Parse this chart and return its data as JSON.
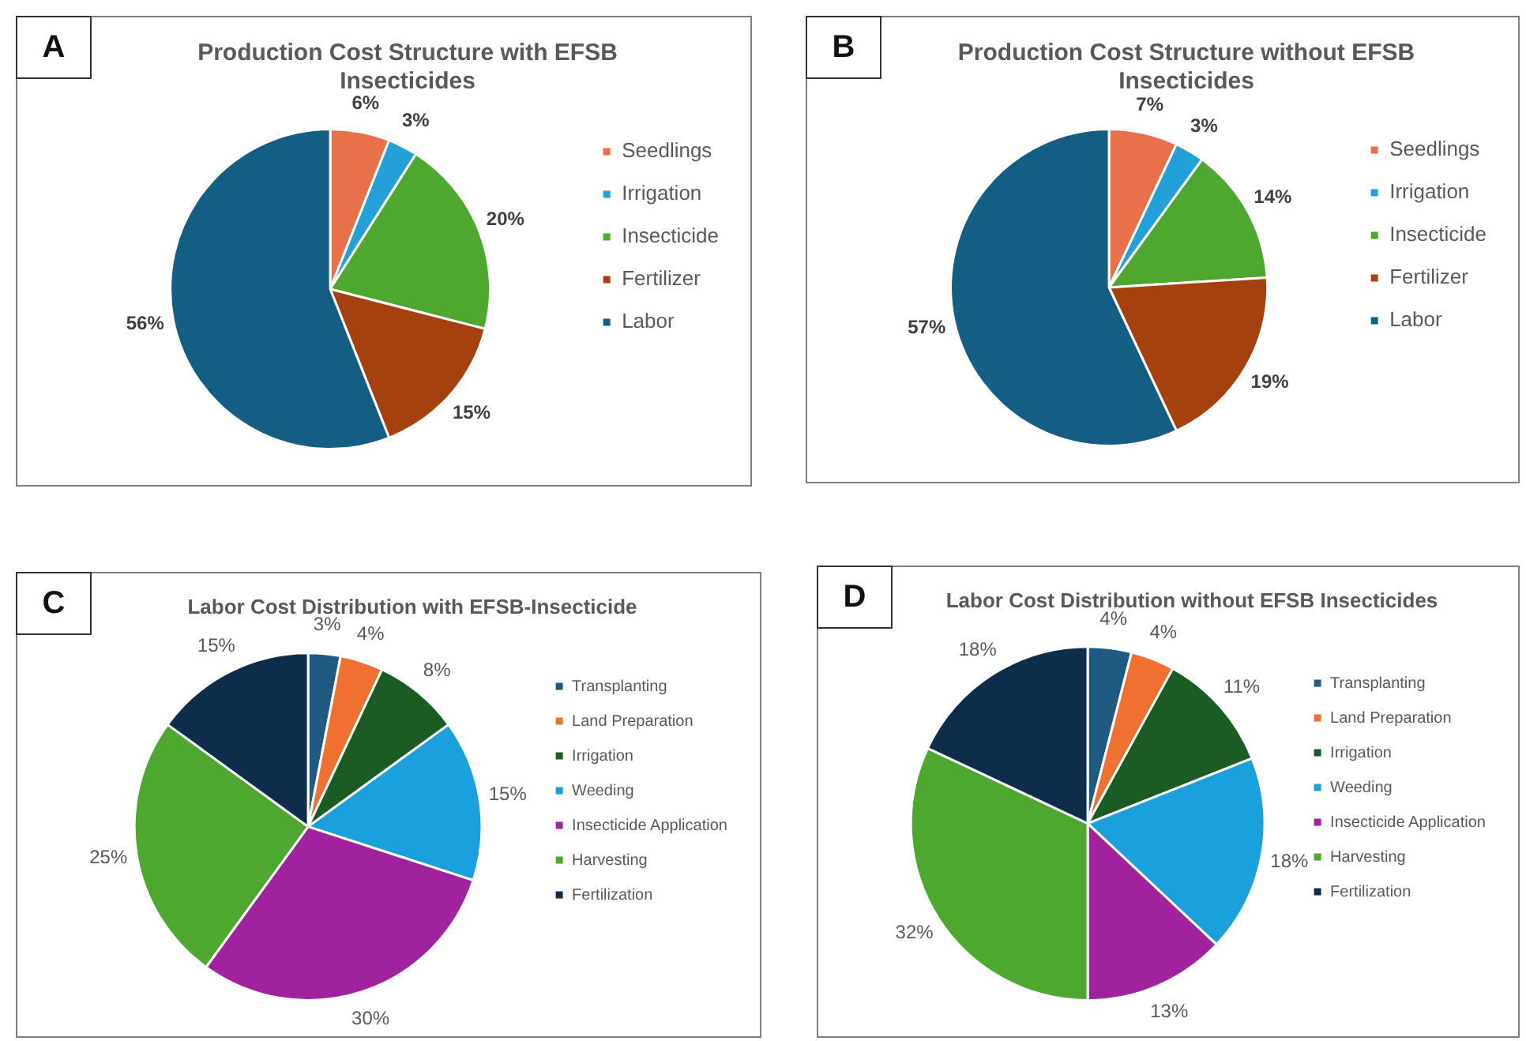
{
  "chart_data": [
    {
      "type": "pie",
      "title": [
        "Production Cost Structure with EFSB",
        "Insecticides"
      ],
      "annotations": [
        "A"
      ],
      "categories": [
        "Seedlings",
        "Irrigation",
        "Insecticide",
        "Fertilizer",
        "Labor"
      ],
      "values": [
        6,
        3,
        20,
        15,
        56
      ],
      "value_labels": [
        "6%",
        "3%",
        "20%",
        "15%",
        "56%"
      ],
      "colors": [
        "#e8704a",
        "#22a0d8",
        "#4ea72e",
        "#a5400f",
        "#155e83"
      ],
      "legend": "right"
    },
    {
      "type": "pie",
      "title": [
        "Production Cost Structure without EFSB",
        "Insecticides"
      ],
      "annotations": [
        "B"
      ],
      "categories": [
        "Seedlings",
        "Irrigation",
        "Insecticide",
        "Fertilizer",
        "Labor"
      ],
      "values": [
        7,
        3,
        14,
        19,
        57
      ],
      "value_labels": [
        "7%",
        "3%",
        "14%",
        "19%",
        "57%"
      ],
      "colors": [
        "#e8704a",
        "#22a0d8",
        "#4ea72e",
        "#a5400f",
        "#155e83"
      ],
      "legend": "right"
    },
    {
      "type": "pie",
      "title": "Labor Cost Distribution with EFSB-Insecticide",
      "annotations": [
        "C"
      ],
      "categories": [
        "Transplanting",
        "Land Preparation",
        "Irrigation",
        "Weeding",
        "Insecticide Application",
        "Harvesting",
        "Fertilization"
      ],
      "values": [
        3,
        4,
        8,
        15,
        30,
        25,
        15
      ],
      "value_labels": [
        "3%",
        "4%",
        "8%",
        "15%",
        "30%",
        "25%",
        "15%"
      ],
      "colors": [
        "#1f5a80",
        "#ef7030",
        "#1a5c24",
        "#1aa0dc",
        "#a0229c",
        "#4ea72e",
        "#0d2d4a"
      ],
      "legend": "right"
    },
    {
      "type": "pie",
      "title": "Labor Cost Distribution without EFSB Insecticides",
      "annotations": [
        "D"
      ],
      "categories": [
        "Transplanting",
        "Land Preparation",
        "Irrigation",
        "Weeding",
        "Insecticide Application",
        "Harvesting",
        "Fertilization"
      ],
      "values": [
        4,
        4,
        11,
        18,
        13,
        32,
        18
      ],
      "value_labels": [
        "4%",
        "4%",
        "11%",
        "18%",
        "13%",
        "32%",
        "18%"
      ],
      "colors": [
        "#1f5a80",
        "#ef7030",
        "#1a5c24",
        "#1aa0dc",
        "#a0229c",
        "#4ea72e",
        "#0d2d4a"
      ],
      "legend": "right"
    }
  ]
}
